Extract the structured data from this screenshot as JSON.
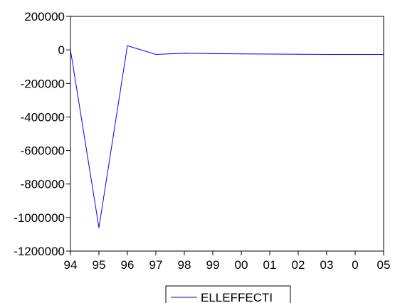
{
  "chart_data": {
    "type": "line",
    "title": "",
    "xlabel": "",
    "ylabel": "",
    "x_tick_labels": [
      "94",
      "95",
      "96",
      "97",
      "98",
      "99",
      "00",
      "01",
      "02",
      "03",
      "0",
      "05"
    ],
    "y_tick_labels": [
      "200000",
      "0",
      "-200000",
      "-400000",
      "-600000",
      "-800000",
      "-1000000",
      "-1200000"
    ],
    "y_ticks": [
      200000,
      0,
      -200000,
      -400000,
      -600000,
      -800000,
      -1000000,
      -1200000
    ],
    "ylim": [
      -1200000,
      200000
    ],
    "grid": false,
    "legend_position": "bottom",
    "series": [
      {
        "name": "ELLEFFECTI",
        "color": "#0000ff",
        "values": [
          0,
          -1060000,
          25000,
          -27000,
          -20000,
          -22000,
          -24000,
          -25000,
          -26000,
          -27000,
          -27000,
          -27000
        ]
      }
    ]
  },
  "colors": {
    "line": "#0000ff",
    "axis": "#000000",
    "background": "#ffffff"
  }
}
